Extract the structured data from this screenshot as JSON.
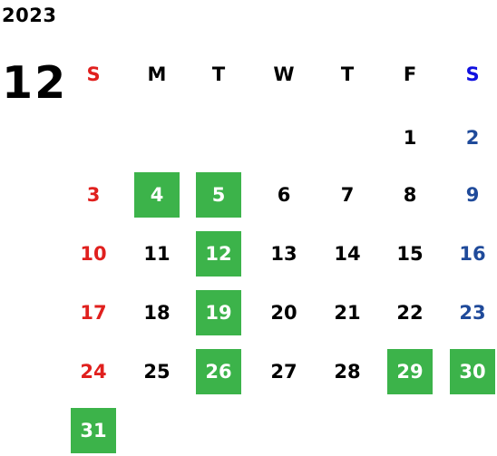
{
  "year": "2023",
  "month": "12",
  "colors": {
    "sunday": "#e0201e",
    "saturday_header": "#1010e0",
    "saturday_day": "#1f4a9a",
    "weekday": "#000000",
    "highlight_bg": "#3cb34a",
    "highlight_text": "#ffffff"
  },
  "weekdays": [
    "S",
    "M",
    "T",
    "W",
    "T",
    "F",
    "S"
  ],
  "weeks": [
    [
      null,
      null,
      null,
      null,
      null,
      {
        "d": "1"
      },
      {
        "d": "2"
      }
    ],
    [
      {
        "d": "3"
      },
      {
        "d": "4",
        "h": true
      },
      {
        "d": "5",
        "h": true
      },
      {
        "d": "6"
      },
      {
        "d": "7"
      },
      {
        "d": "8"
      },
      {
        "d": "9"
      }
    ],
    [
      {
        "d": "10"
      },
      {
        "d": "11"
      },
      {
        "d": "12",
        "h": true
      },
      {
        "d": "13"
      },
      {
        "d": "14"
      },
      {
        "d": "15"
      },
      {
        "d": "16"
      }
    ],
    [
      {
        "d": "17"
      },
      {
        "d": "18"
      },
      {
        "d": "19",
        "h": true
      },
      {
        "d": "20"
      },
      {
        "d": "21"
      },
      {
        "d": "22"
      },
      {
        "d": "23"
      }
    ],
    [
      {
        "d": "24"
      },
      {
        "d": "25"
      },
      {
        "d": "26",
        "h": true
      },
      {
        "d": "27"
      },
      {
        "d": "28"
      },
      {
        "d": "29",
        "h": true
      },
      {
        "d": "30",
        "h": true
      }
    ],
    [
      {
        "d": "31",
        "h": true
      },
      null,
      null,
      null,
      null,
      null,
      null
    ]
  ]
}
